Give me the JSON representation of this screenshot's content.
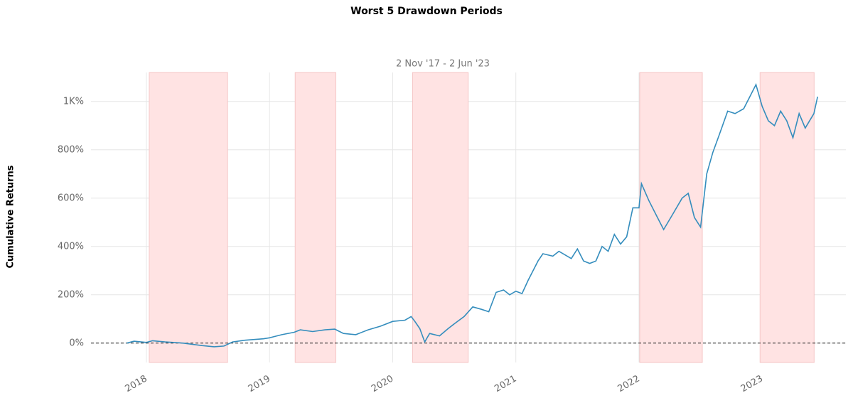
{
  "chart_data": {
    "type": "line",
    "title": "Worst 5 Drawdown Periods",
    "subtitle": "2 Nov '17 -  2 Jun '23",
    "y_label": "Cumulative Returns",
    "x": [
      2017.84,
      2017.9,
      2018.0,
      2018.05,
      2018.15,
      2018.3,
      2018.45,
      2018.55,
      2018.63,
      2018.7,
      2018.8,
      2018.95,
      2019.0,
      2019.1,
      2019.2,
      2019.25,
      2019.35,
      2019.45,
      2019.53,
      2019.6,
      2019.7,
      2019.8,
      2019.9,
      2020.0,
      2020.1,
      2020.15,
      2020.18,
      2020.22,
      2020.26,
      2020.3,
      2020.38,
      2020.45,
      2020.5,
      2020.58,
      2020.65,
      2020.72,
      2020.78,
      2020.84,
      2020.9,
      2020.95,
      2021.0,
      2021.05,
      2021.1,
      2021.18,
      2021.22,
      2021.3,
      2021.35,
      2021.45,
      2021.5,
      2021.55,
      2021.6,
      2021.65,
      2021.7,
      2021.75,
      2021.8,
      2021.85,
      2021.9,
      2021.95,
      2022.0,
      2022.02,
      2022.08,
      2022.15,
      2022.2,
      2022.27,
      2022.35,
      2022.4,
      2022.45,
      2022.5,
      2022.55,
      2022.6,
      2022.65,
      2022.72,
      2022.78,
      2022.85,
      2022.9,
      2022.95,
      2023.0,
      2023.05,
      2023.1,
      2023.15,
      2023.2,
      2023.25,
      2023.3,
      2023.35,
      2023.42,
      2023.45
    ],
    "series": [
      {
        "name": "Cumulative Returns",
        "color": "#348dbd",
        "values": [
          0,
          8,
          3,
          10,
          5,
          0,
          -10,
          -15,
          -12,
          5,
          12,
          18,
          22,
          35,
          45,
          55,
          48,
          55,
          58,
          40,
          35,
          55,
          70,
          90,
          95,
          110,
          90,
          60,
          5,
          40,
          30,
          60,
          80,
          110,
          150,
          140,
          130,
          210,
          220,
          200,
          215,
          205,
          260,
          340,
          370,
          360,
          380,
          350,
          390,
          340,
          330,
          340,
          400,
          380,
          450,
          410,
          440,
          560,
          560,
          660,
          590,
          520,
          470,
          530,
          600,
          620,
          520,
          480,
          700,
          790,
          860,
          960,
          950,
          970,
          1020,
          1070,
          980,
          920,
          900,
          960,
          920,
          850,
          950,
          890,
          950,
          1020
        ]
      }
    ],
    "drawdowns": [
      [
        2018.023,
        2018.659
      ],
      [
        2019.208,
        2019.538
      ],
      [
        2020.162,
        2020.613
      ],
      [
        2022.006,
        2022.514
      ],
      [
        2022.983,
        2023.422
      ]
    ],
    "shade_color": "#ffe3e3",
    "hline": 0,
    "xlim": [
      2017.55,
      2023.68
    ],
    "xticks": [
      2018,
      2019,
      2020,
      2021,
      2022,
      2023
    ],
    "ylim": [
      -80,
      1120
    ],
    "yticks": [
      {
        "value": 0,
        "label": "0%"
      },
      {
        "value": 200,
        "label": "200%"
      },
      {
        "value": 400,
        "label": "400%"
      },
      {
        "value": 600,
        "label": "600%"
      },
      {
        "value": 800,
        "label": "800%"
      },
      {
        "value": 1000,
        "label": "1K%"
      }
    ],
    "grid": true
  }
}
